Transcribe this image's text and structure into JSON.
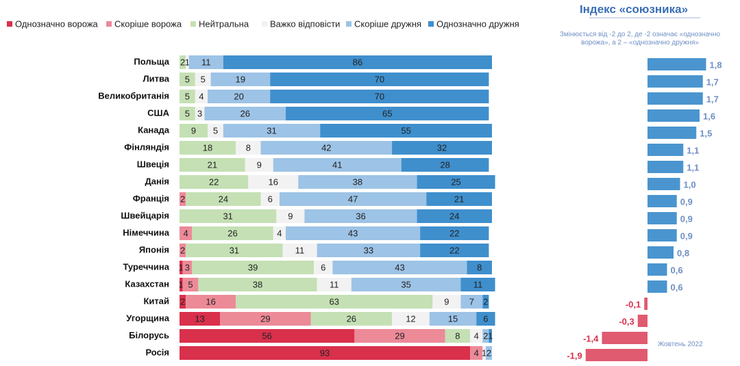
{
  "chart_data": [
    {
      "type": "stacked-bar",
      "categories": [
        "Польща",
        "Литва",
        "Великобританія",
        "США",
        "Канада",
        "Фінляндія",
        "Швеція",
        "Данія",
        "Франція",
        "Швейцарія",
        "Німеччина",
        "Японія",
        "Туреччина",
        "Казахстан",
        "Китай",
        "Угорщина",
        "Білорусь",
        "Росія"
      ],
      "xlim": [
        0,
        100
      ],
      "series": [
        {
          "name": "Однозначно ворожа",
          "color": "#d9304c",
          "values": [
            0,
            0,
            0,
            0,
            0,
            0,
            0,
            0,
            0,
            0,
            0,
            0,
            1,
            1,
            2,
            13,
            56,
            93
          ]
        },
        {
          "name": "Скоріше ворожа",
          "color": "#ec8a98",
          "values": [
            0,
            0,
            0,
            0,
            0,
            0,
            0,
            0,
            2,
            0,
            4,
            2,
            3,
            5,
            16,
            29,
            29,
            4
          ]
        },
        {
          "name": "Нейтральна",
          "color": "#c5e0b4",
          "values": [
            2,
            5,
            5,
            5,
            9,
            18,
            21,
            22,
            24,
            31,
            26,
            31,
            39,
            38,
            63,
            26,
            8,
            0
          ]
        },
        {
          "name": "Важко відповісти",
          "color": "#f2f2f2",
          "values": [
            1,
            5,
            4,
            3,
            5,
            8,
            9,
            16,
            6,
            9,
            4,
            11,
            6,
            11,
            9,
            12,
            4,
            1
          ]
        },
        {
          "name": "Скоріше дружня",
          "color": "#9dc3e6",
          "values": [
            11,
            19,
            20,
            26,
            31,
            42,
            41,
            38,
            47,
            36,
            43,
            33,
            43,
            35,
            7,
            15,
            2,
            2
          ]
        },
        {
          "name": "Однозначно дружня",
          "color": "#3f8fcd",
          "values": [
            86,
            70,
            70,
            65,
            55,
            32,
            28,
            25,
            21,
            24,
            22,
            22,
            8,
            11,
            2,
            6,
            1,
            0
          ]
        }
      ]
    },
    {
      "type": "bar",
      "title": "Індекс «союзника»",
      "subtitle": "Змінюється від -2 до 2, де -2 означає «однозначно ворожа», а 2 – «однозначно дружня»",
      "note": "Жовтень 2022",
      "xlim": [
        -2,
        2
      ],
      "positive_color": "#4a95cf",
      "negative_color": "#e05a70",
      "values": [
        1.8,
        1.7,
        1.7,
        1.6,
        1.5,
        1.1,
        1.1,
        1.0,
        0.9,
        0.9,
        0.9,
        0.8,
        0.6,
        0.6,
        -0.1,
        -0.3,
        -1.4,
        -1.9
      ],
      "value_labels": [
        "1,8",
        "1,7",
        "1,7",
        "1,6",
        "1,5",
        "1,1",
        "1,1",
        "1,0",
        "0,9",
        "0,9",
        "0,9",
        "0,8",
        "0,6",
        "0,6",
        "-0,1",
        "-0,3",
        "-1,4",
        "-1,9"
      ]
    }
  ]
}
